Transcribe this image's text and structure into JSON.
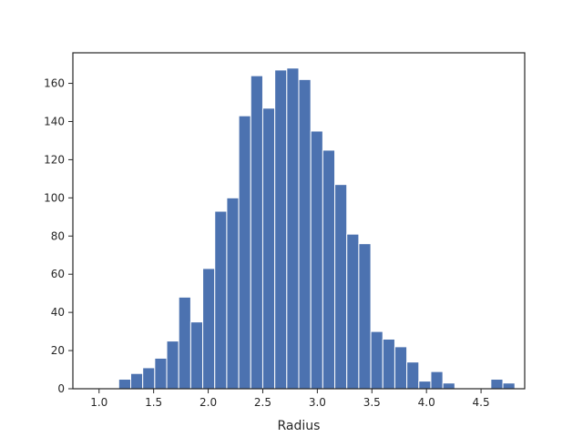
{
  "chart_data": {
    "type": "bar",
    "title": "",
    "xlabel": "Radius",
    "ylabel": "",
    "bar_color": "#4c72b0",
    "edge_color": "#ffffff",
    "xlim": [
      0.76,
      4.9
    ],
    "ylim": [
      0,
      176
    ],
    "grid": false,
    "legend": "none",
    "xticks": [
      1.0,
      1.5,
      2.0,
      2.5,
      3.0,
      3.5,
      4.0,
      4.5
    ],
    "xtick_labels": [
      "1.0",
      "1.5",
      "2.0",
      "2.5",
      "3.0",
      "3.5",
      "4.0",
      "4.5"
    ],
    "yticks": [
      0,
      20,
      40,
      60,
      80,
      100,
      120,
      140,
      160
    ],
    "ytick_labels": [
      "0",
      "20",
      "40",
      "60",
      "80",
      "100",
      "120",
      "140",
      "160"
    ],
    "bin_edges": [
      0.85,
      0.96,
      1.07,
      1.18,
      1.29,
      1.4,
      1.51,
      1.62,
      1.73,
      1.84,
      1.95,
      2.06,
      2.17,
      2.28,
      2.39,
      2.5,
      2.61,
      2.72,
      2.83,
      2.94,
      3.05,
      3.16,
      3.27,
      3.38,
      3.49,
      3.6,
      3.71,
      3.82,
      3.93,
      4.04,
      4.15,
      4.26,
      4.37,
      4.48,
      4.59,
      4.7,
      4.81
    ],
    "counts": [
      0,
      0,
      0,
      5,
      8,
      11,
      16,
      25,
      48,
      35,
      63,
      93,
      100,
      143,
      164,
      147,
      167,
      168,
      162,
      135,
      125,
      107,
      81,
      76,
      30,
      26,
      22,
      14,
      4,
      9,
      3,
      0,
      0,
      0,
      5,
      3
    ]
  }
}
